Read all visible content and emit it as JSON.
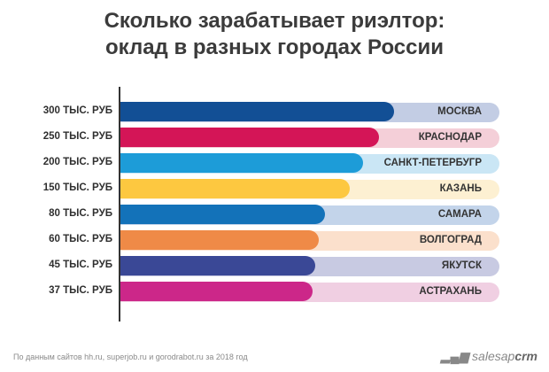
{
  "chart_data": {
    "type": "bar",
    "title": "Сколько зарабатывает риэлтор:\nоклад в разных городах России",
    "title_lines": [
      "Сколько зарабатывает риэлтор:",
      "оклад в разных городах России"
    ],
    "categories": [
      "МОСКВА",
      "КРАСНОДАР",
      "САНКТ-ПЕТЕРБУГР",
      "КАЗАНЬ",
      "САМАРА",
      "ВОЛГОГРАД",
      "ЯКУТСК",
      "АСТРАХАНЬ"
    ],
    "value_labels": [
      "300 ТЫС. РУБ",
      "250 ТЫС. РУБ",
      "200 ТЫС. РУБ",
      "150 ТЫС. РУБ",
      "80 ТЫС. РУБ",
      "60 ТЫС. РУБ",
      "45 ТЫС. РУБ",
      "37 ТЫС. РУБ"
    ],
    "values": [
      300,
      250,
      200,
      150,
      80,
      60,
      45,
      37
    ],
    "unit": "тыс. руб",
    "orientation": "horizontal",
    "colors": [
      "#124f95",
      "#d41557",
      "#1d9cd8",
      "#fdc840",
      "#1372b9",
      "#ef8a47",
      "#3a4896",
      "#cc2789"
    ],
    "track_colors": [
      "#c3cde4",
      "#f4cfd8",
      "#cae6f5",
      "#fdf0d2",
      "#c3d4ea",
      "#fbe0cc",
      "#c8cae2",
      "#f0cfe2"
    ],
    "grid": false
  },
  "footer": {
    "source": "По данным сайтов hh.ru, superjob.ru и gorodrabot.ru за 2018 год",
    "logo_light": "salesap",
    "logo_bold": "crm"
  }
}
